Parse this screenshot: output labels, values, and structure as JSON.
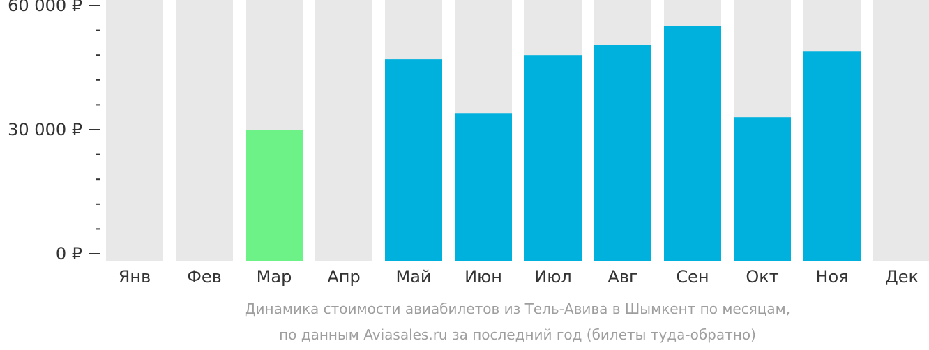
{
  "chart_data": {
    "type": "bar",
    "categories": [
      "Янв",
      "Фев",
      "Мар",
      "Апр",
      "Май",
      "Июн",
      "Июл",
      "Авг",
      "Сен",
      "Окт",
      "Ноя",
      "Дек"
    ],
    "values": [
      null,
      null,
      30000,
      null,
      47000,
      34000,
      48000,
      50500,
      55000,
      33000,
      49000,
      null
    ],
    "ylim": [
      0,
      60000
    ],
    "yticks_major": [
      0,
      30000,
      60000
    ],
    "ytick_labels": [
      "0 ₽",
      "30 000 ₽",
      "60 000 ₽"
    ],
    "minor_ticks_between_major": 4,
    "caption_line1": "Динамика стоимости авиабилетов из Тель-Авива в Шымкент по месяцам,",
    "caption_line2": "по данным Aviasales.ru за последний год (билеты туда-обратно)",
    "colors": {
      "bar_default": "#00b1dd",
      "bar_min": "#6cf286",
      "bar_background": "#e8e8e8",
      "axis": "#333333"
    },
    "min_category": "Мар"
  }
}
